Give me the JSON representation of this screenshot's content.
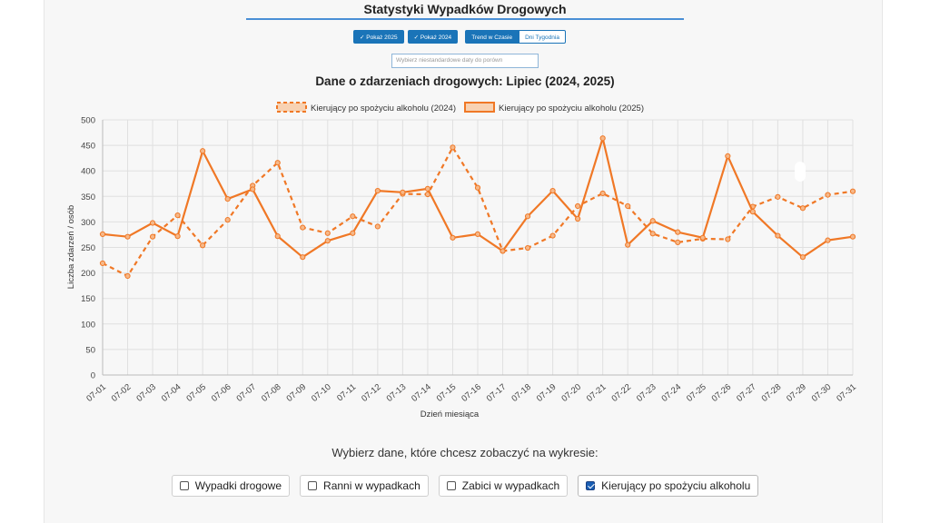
{
  "header": {
    "title": "Statystyki Wypadków Drogowych"
  },
  "toolbar": {
    "show_2025": "✓ Pokaż 2025",
    "show_2024": "✓ Pokaż 2024",
    "trend": "Trend w Czasie",
    "weekdays": "Dni Tygodnia"
  },
  "date_input": {
    "placeholder": "Wybierz niestandardowe daty do porówn"
  },
  "selector": {
    "prompt": "Wybierz dane, które chcesz zobaczyć na wykresie:",
    "options": [
      {
        "label": "Wypadki drogowe",
        "checked": false
      },
      {
        "label": "Ranni w wypadkach",
        "checked": false
      },
      {
        "label": "Zabici w wypadkach",
        "checked": false
      },
      {
        "label": "Kierujący po spożyciu alkoholu",
        "checked": true
      }
    ]
  },
  "chart_data": {
    "type": "line",
    "title": "Dane o zdarzeniach drogowych: Lipiec (2024, 2025)",
    "xlabel": "Dzień miesiąca",
    "ylabel": "Liczba zdarzeń / osób",
    "ylim": [
      0,
      500
    ],
    "yticks": [
      0,
      50,
      100,
      150,
      200,
      250,
      300,
      350,
      400,
      450,
      500
    ],
    "grid": true,
    "legend_position": "top",
    "color": "#f07826",
    "categories": [
      "07-01",
      "07-02",
      "07-03",
      "07-04",
      "07-05",
      "07-06",
      "07-07",
      "07-08",
      "07-09",
      "07-10",
      "07-11",
      "07-12",
      "07-13",
      "07-14",
      "07-15",
      "07-16",
      "07-17",
      "07-18",
      "07-19",
      "07-20",
      "07-21",
      "07-22",
      "07-23",
      "07-24",
      "07-25",
      "07-26",
      "07-27",
      "07-28",
      "07-29",
      "07-30",
      "07-31"
    ],
    "series": [
      {
        "name": "Kierujący po spożyciu alkoholu (2024)",
        "style": "dashed",
        "values": [
          219,
          194,
          271,
          313,
          254,
          304,
          371,
          416,
          289,
          278,
          311,
          291,
          355,
          354,
          446,
          367,
          243,
          249,
          273,
          331,
          356,
          331,
          277,
          260,
          267,
          266,
          330,
          349,
          327,
          353,
          360
        ]
      },
      {
        "name": "Kierujący po spożyciu alkoholu (2025)",
        "style": "solid",
        "values": [
          276,
          271,
          298,
          272,
          439,
          345,
          364,
          272,
          231,
          263,
          278,
          361,
          358,
          365,
          269,
          276,
          243,
          311,
          361,
          306,
          464,
          255,
          302,
          280,
          269,
          429,
          320,
          273,
          231,
          264,
          271
        ]
      }
    ]
  }
}
